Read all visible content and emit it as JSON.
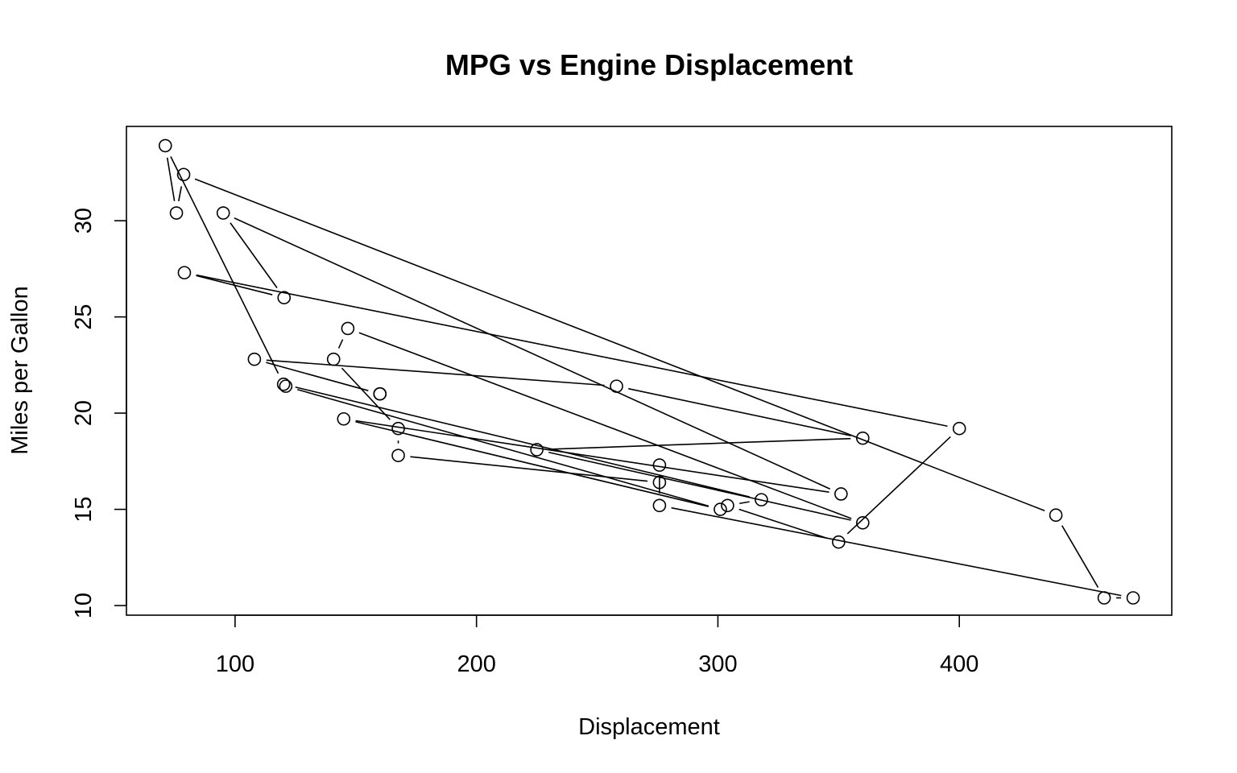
{
  "chart_data": {
    "type": "line",
    "title": "MPG vs Engine Displacement",
    "xlabel": "Displacement",
    "ylabel": "Miles per Gallon",
    "xlim": [
      55,
      488
    ],
    "ylim": [
      9.5,
      34.9
    ],
    "x_ticks": [
      "100",
      "200",
      "300",
      "400"
    ],
    "y_ticks": [
      "10",
      "15",
      "20",
      "25",
      "30"
    ],
    "grid": false,
    "legend": "none",
    "plot_style": "both",
    "point_style": "open-circle",
    "color": "#000000",
    "series": [
      {
        "x": [
          160,
          160,
          108,
          258,
          360,
          225,
          360,
          146.7,
          140.8,
          167.6,
          167.6,
          275.8,
          275.8,
          275.8,
          472,
          460,
          440,
          78.7,
          75.7,
          71.1,
          120.1,
          318,
          304,
          350,
          400,
          79,
          120.3,
          95.1,
          351,
          145,
          301,
          121
        ],
        "y": [
          21.0,
          21.0,
          22.8,
          21.4,
          18.7,
          18.1,
          14.3,
          24.4,
          22.8,
          19.2,
          17.8,
          16.4,
          17.3,
          15.2,
          10.4,
          10.4,
          14.7,
          32.4,
          30.4,
          33.9,
          21.5,
          15.5,
          15.2,
          13.3,
          19.2,
          27.3,
          26.0,
          30.4,
          15.8,
          19.7,
          15.0,
          21.4
        ]
      }
    ]
  }
}
